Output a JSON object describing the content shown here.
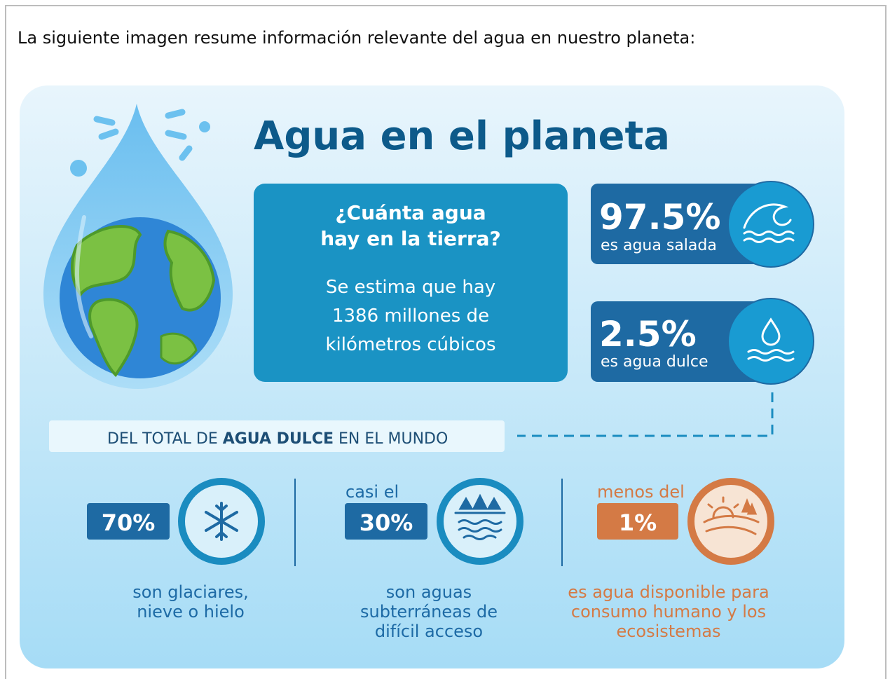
{
  "intro": "La siguiente imagen resume información relevante del agua en nuestro planeta:",
  "infographic": {
    "title": "Agua en el planeta",
    "question": {
      "heading": [
        "¿Cuánta agua",
        "hay en la tierra?"
      ],
      "body": [
        "Se estima que hay",
        "1386 millones de",
        "kilómetros cúbicos"
      ]
    },
    "stats": [
      {
        "value": "97.5%",
        "label": "es agua salada"
      },
      {
        "value": "2.5%",
        "label": "es agua dulce"
      }
    ],
    "banner": [
      "DEL TOTAL DE ",
      "AGUA DULCE",
      " EN EL MUNDO"
    ],
    "items": [
      {
        "value": "70%",
        "description": [
          "son glaciares,",
          "nieve o hielo"
        ]
      },
      {
        "prefix": "casi el",
        "value": "30%",
        "description": [
          "son aguas",
          "subterráneas de",
          "difícil acceso"
        ]
      },
      {
        "prefix": "menos del",
        "value": "1%",
        "description": [
          "es agua disponible para",
          "consumo humano y los",
          "ecosistemas"
        ]
      }
    ]
  }
}
